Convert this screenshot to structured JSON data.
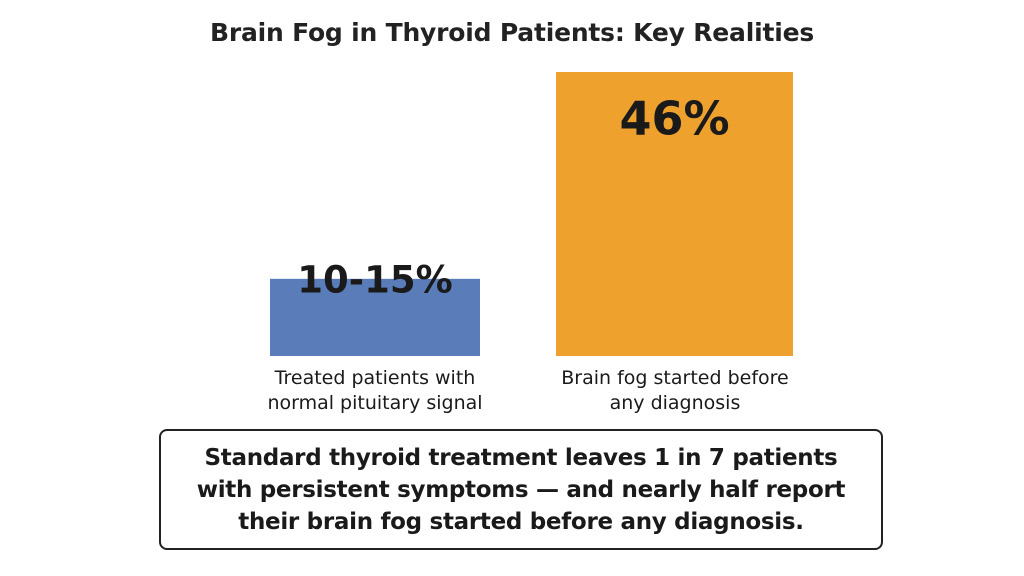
{
  "chart_data": {
    "type": "bar",
    "title": "Brain Fog in Thyroid Patients: Key Realities",
    "categories": [
      "Treated patients with normal pituitary signal",
      "Brain fog started before any diagnosis"
    ],
    "category_lines": [
      [
        "Treated patients with",
        "normal pituitary signal"
      ],
      [
        "Brain fog started before",
        "any diagnosis"
      ]
    ],
    "values": [
      12.5,
      46
    ],
    "value_labels": [
      "10-15%",
      "46%"
    ],
    "colors": [
      "#5a7dba",
      "#eea22d"
    ],
    "unit": "%",
    "ylim": [
      0,
      50
    ],
    "grid": false,
    "legend": "none"
  },
  "callout": {
    "lines": [
      "Standard thyroid treatment leaves 1 in 7 patients",
      "with persistent symptoms — and nearly half report",
      "their brain fog started before any diagnosis."
    ]
  }
}
